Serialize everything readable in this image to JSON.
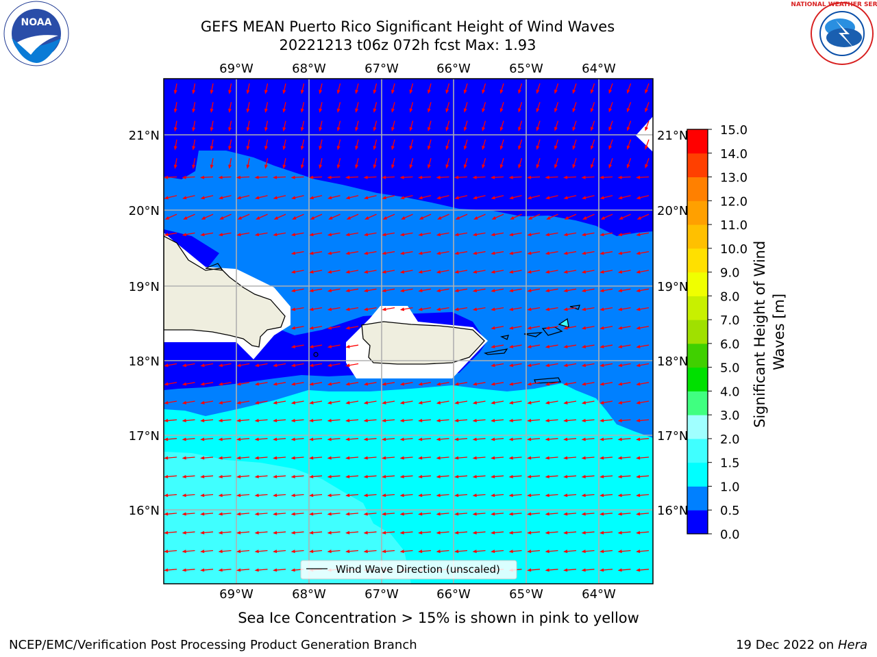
{
  "header": {
    "title_line1": "GEFS MEAN Puerto Rico Significant Height of Wind Waves",
    "title_line2": "20221213 t06z 072h fcst   Max: 1.93"
  },
  "logos": {
    "left": "NOAA",
    "right": "NATIONAL WEATHER SERVICE"
  },
  "map": {
    "lon_range": [
      -70,
      -63.25
    ],
    "lat_range": [
      15,
      21.75
    ],
    "lon_ticks": [
      "69°W",
      "68°W",
      "67°W",
      "66°W",
      "65°W",
      "64°W"
    ],
    "lat_ticks": [
      "21°N",
      "20°N",
      "19°N",
      "18°N",
      "17°N",
      "16°N"
    ],
    "legend_label": "Wind Wave Direction (unscaled)",
    "arrow_color": "#ff0000",
    "land_color": "#efeedf"
  },
  "colorbar": {
    "label": "Significant Height of Wind Waves [m]",
    "ticks": [
      "0.0",
      "0.5",
      "1.0",
      "1.5",
      "2.0",
      "3.0",
      "4.0",
      "5.0",
      "6.0",
      "7.0",
      "8.0",
      "9.0",
      "10.0",
      "11.0",
      "12.0",
      "13.0",
      "14.0",
      "15.0"
    ],
    "colors": [
      "#0000ff",
      "#0080ff",
      "#00ffff",
      "#40ffff",
      "#a0ffff",
      "#40ff80",
      "#00e000",
      "#40d000",
      "#a0e000",
      "#c8f000",
      "#f0ff00",
      "#ffe000",
      "#ffc000",
      "#ffa000",
      "#ff8000",
      "#ff4000",
      "#ff0000"
    ]
  },
  "notes": {
    "ice": "Sea Ice Concentration > 15% is shown in pink to yellow",
    "footer_left": "NCEP/EMC/Verification Post Processing Product Generation Branch",
    "footer_date": "19 Dec 2022 on",
    "footer_host": "Hera"
  }
}
